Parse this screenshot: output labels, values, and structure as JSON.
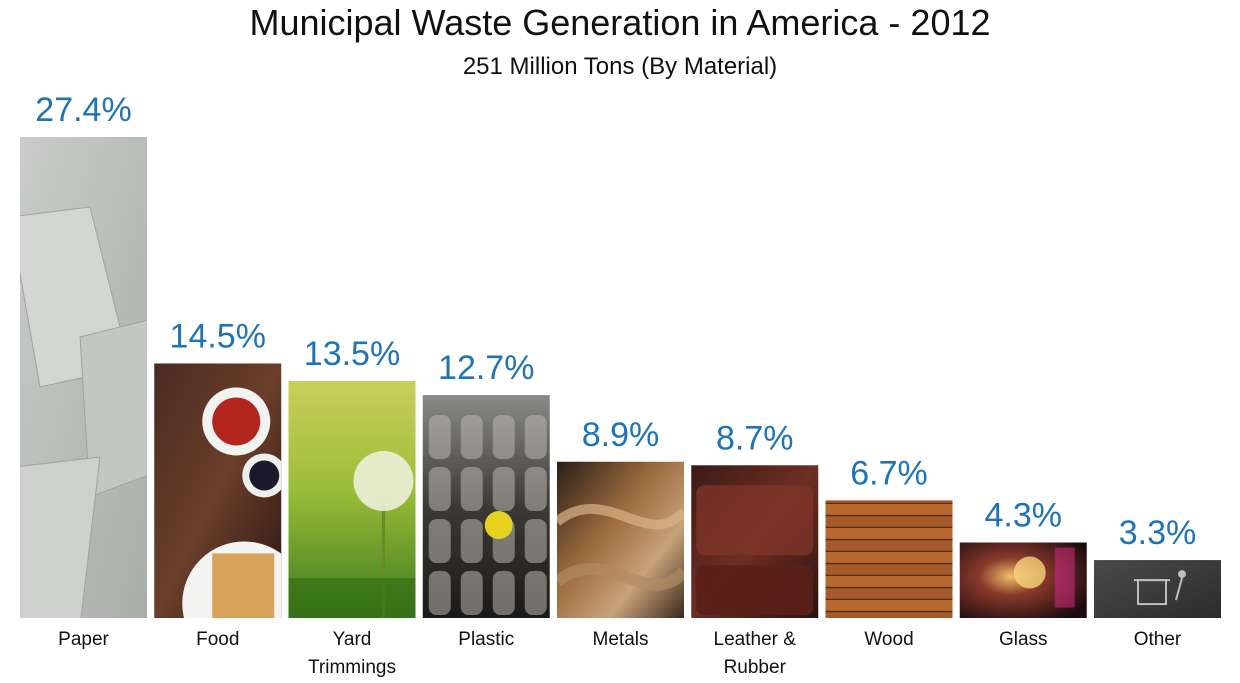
{
  "chart_data": {
    "type": "bar",
    "title": "Municipal Waste Generation in America - 2012",
    "subtitle": "251 Million Tons (By Material)",
    "categories": [
      "Paper",
      "Food",
      "Yard Trimmings",
      "Plastic",
      "Metals",
      "Leather & Rubber",
      "Wood",
      "Glass",
      "Other"
    ],
    "category_lines": [
      [
        "Paper"
      ],
      [
        "Food"
      ],
      [
        "Yard",
        "Trimmings"
      ],
      [
        "Plastic"
      ],
      [
        "Metals"
      ],
      [
        "Leather &",
        "Rubber"
      ],
      [
        "Wood"
      ],
      [
        "Glass"
      ],
      [
        "Other"
      ]
    ],
    "values": [
      27.4,
      14.5,
      13.5,
      12.7,
      8.9,
      8.7,
      6.7,
      4.3,
      3.3
    ],
    "value_labels": [
      "27.4%",
      "14.5%",
      "13.5%",
      "12.7%",
      "8.9%",
      "8.7%",
      "6.7%",
      "4.3%",
      "3.3%"
    ],
    "xlabel": "",
    "ylabel": "",
    "ylim": [
      0,
      27.4
    ],
    "grid": false,
    "legend": "none",
    "bar_fill": "photo",
    "label_color": "#1f73b7",
    "bar_textures": [
      "paper-sheets",
      "food-waffles",
      "dandelion-grass",
      "plastic-bottles",
      "metal-pipes",
      "leather-bags",
      "wood-planks",
      "glass-drinks",
      "recycle-bin-icon"
    ]
  }
}
